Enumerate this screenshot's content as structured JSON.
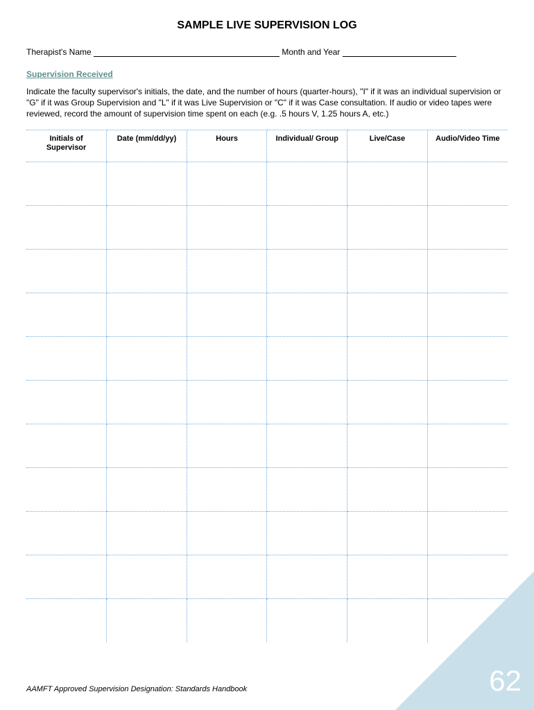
{
  "title": "SAMPLE LIVE SUPERVISION LOG",
  "fields": {
    "therapist_label": "Therapist's Name",
    "month_label": "Month and Year"
  },
  "section_heading": "Supervision Received",
  "instructions": "Indicate the faculty supervisor's initials, the date, and the number of hours (quarter-hours), \"I\" if it was an individual supervision or \"G\" if it was Group Supervision and \"L\" if it was Live Supervision or \"C\" if it was Case consultation. If audio or video tapes were reviewed, record the amount of supervision time spent on each (e.g. .5 hours V, 1.25 hours A, etc.)",
  "table": {
    "columns": [
      "Initials of Supervisor",
      "Date (mm/dd/yy)",
      "Hours",
      "Individual/ Group",
      "Live/Case",
      "Audio/Video Time"
    ],
    "row_count": 11,
    "border_color": "#6fa8d8"
  },
  "footer": "AAMFT Approved Supervision Designation: Standards Handbook",
  "page_number": "62",
  "corner_color": "#c9e0ea"
}
